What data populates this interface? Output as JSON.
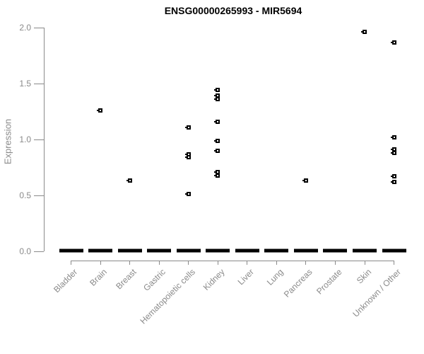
{
  "figure": {
    "title": "ENSG00000265993 - MIR5694",
    "ylabel": "Expression"
  },
  "chart_data": {
    "type": "scatter",
    "title": "ENSG00000265993 - MIR5694",
    "xlabel": "",
    "ylabel": "Expression",
    "ylim": [
      0.0,
      2.0
    ],
    "yticks": [
      0.0,
      0.5,
      1.0,
      1.5,
      2.0
    ],
    "grid": false,
    "legend": "none",
    "marker": "small-open-square",
    "categories": [
      "Bladder",
      "Brain",
      "Breast",
      "Gastric",
      "Hematopoietic cells",
      "Kidney",
      "Liver",
      "Lung",
      "Pancreas",
      "Prostate",
      "Skin",
      "Unknown / Other"
    ],
    "zero_cluster_per_category": [
      true,
      true,
      true,
      true,
      true,
      true,
      true,
      true,
      true,
      true,
      true,
      true
    ],
    "nonzero_values": [
      [],
      [
        1.26
      ],
      [
        0.63
      ],
      [],
      [
        1.11,
        0.87,
        0.84,
        0.51
      ],
      [
        1.44,
        1.39,
        1.36,
        1.16,
        0.99,
        0.9,
        0.71,
        0.68
      ],
      [],
      [],
      [
        0.63
      ],
      [],
      [
        1.96
      ],
      [
        1.87,
        1.02,
        0.91,
        0.88,
        0.67,
        0.62
      ]
    ],
    "colors": {
      "points": "#000000",
      "zero_dash": "#000000",
      "axis": "#8a8a8a",
      "tick_labels": "#8a8a8a",
      "title": "#000000",
      "background": "#ffffff"
    }
  }
}
